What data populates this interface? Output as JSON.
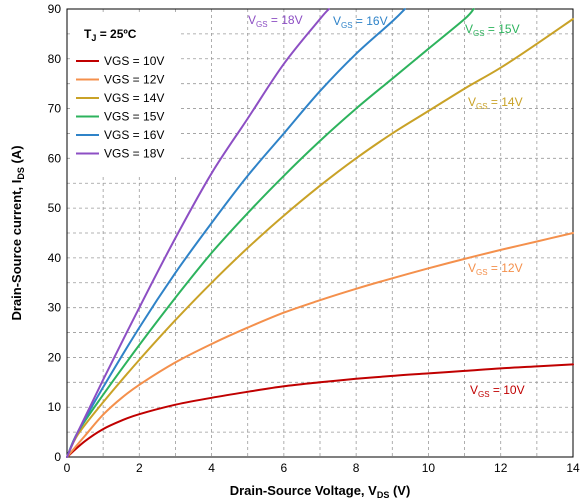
{
  "chart_data": {
    "type": "line",
    "xlabel": {
      "main": "Drain-Source Voltage, V",
      "sub": "DS",
      "tail": " (V)"
    },
    "ylabel": {
      "main": "Drain-Source current, I",
      "sub": "DS",
      "tail": " (A)"
    },
    "xlim": [
      0,
      14
    ],
    "ylim": [
      0,
      90
    ],
    "x_ticks": [
      0,
      2,
      4,
      6,
      8,
      10,
      12,
      14
    ],
    "y_ticks": [
      0,
      10,
      20,
      30,
      40,
      50,
      60,
      70,
      80,
      90
    ],
    "grid": "dashed",
    "legend_position": "top-left",
    "condition_note": {
      "main": "T",
      "sub": "J",
      "tail": " = 25ºC"
    },
    "series": [
      {
        "name": "VGS = 10V",
        "color": "#c00000",
        "annotation": {
          "main": "V",
          "sub": "GS",
          "tail": " = 10V"
        },
        "points": [
          [
            0,
            0
          ],
          [
            0.5,
            3.2
          ],
          [
            1,
            5.6
          ],
          [
            1.5,
            7.3
          ],
          [
            2,
            8.6
          ],
          [
            3,
            10.5
          ],
          [
            4,
            11.9
          ],
          [
            5,
            13.1
          ],
          [
            6,
            14.2
          ],
          [
            7,
            15
          ],
          [
            8,
            15.7
          ],
          [
            9,
            16.3
          ],
          [
            10,
            16.8
          ],
          [
            11,
            17.3
          ],
          [
            12,
            17.8
          ],
          [
            13,
            18.2
          ],
          [
            14,
            18.6
          ]
        ]
      },
      {
        "name": "VGS = 12V",
        "color": "#f4904c",
        "annotation": {
          "main": "V",
          "sub": "GS",
          "tail": " = 12V"
        },
        "points": [
          [
            0,
            0
          ],
          [
            0.5,
            4.3
          ],
          [
            1,
            8.5
          ],
          [
            1.5,
            11.8
          ],
          [
            2,
            14.5
          ],
          [
            3,
            19
          ],
          [
            4,
            22.7
          ],
          [
            5,
            26
          ],
          [
            6,
            29
          ],
          [
            7,
            31.5
          ],
          [
            8,
            33.8
          ],
          [
            9,
            35.9
          ],
          [
            10,
            37.9
          ],
          [
            11,
            39.8
          ],
          [
            12,
            41.6
          ],
          [
            13,
            43.3
          ],
          [
            14,
            45
          ]
        ]
      },
      {
        "name": "VGS = 14V",
        "color": "#c9a227",
        "annotation": {
          "main": "V",
          "sub": "GS",
          "tail": " = 14V"
        },
        "points": [
          [
            0,
            0
          ],
          [
            0.3,
            4.5
          ],
          [
            1,
            11
          ],
          [
            2,
            19.5
          ],
          [
            3,
            27.5
          ],
          [
            4,
            35
          ],
          [
            5,
            42
          ],
          [
            6,
            48.5
          ],
          [
            7,
            54.5
          ],
          [
            8,
            60
          ],
          [
            9,
            65
          ],
          [
            10,
            69.5
          ],
          [
            11,
            74
          ],
          [
            12,
            78.2
          ],
          [
            13,
            83
          ],
          [
            14,
            88
          ]
        ]
      },
      {
        "name": "VGS = 15V",
        "color": "#2db35d",
        "annotation": {
          "main": "V",
          "sub": "GS",
          "tail": " = 15V"
        },
        "points": [
          [
            0,
            0
          ],
          [
            0.3,
            5
          ],
          [
            1,
            12.5
          ],
          [
            2,
            22.5
          ],
          [
            3,
            32
          ],
          [
            4,
            41
          ],
          [
            5,
            49
          ],
          [
            6,
            56.5
          ],
          [
            7,
            63.5
          ],
          [
            8,
            70
          ],
          [
            9,
            76
          ],
          [
            10,
            82
          ],
          [
            11,
            88
          ],
          [
            11.25,
            90
          ]
        ]
      },
      {
        "name": "VGS = 16V",
        "color": "#2f83c8",
        "annotation": {
          "main": "V",
          "sub": "GS",
          "tail": " = 16V"
        },
        "points": [
          [
            0,
            0
          ],
          [
            0.3,
            5
          ],
          [
            1,
            14
          ],
          [
            2,
            26
          ],
          [
            3,
            37
          ],
          [
            4,
            47
          ],
          [
            5,
            56.5
          ],
          [
            6,
            65
          ],
          [
            7,
            73.5
          ],
          [
            8,
            81
          ],
          [
            9,
            87.5
          ],
          [
            9.35,
            90
          ]
        ]
      },
      {
        "name": "VGS = 18V",
        "color": "#8d4fc4",
        "annotation": {
          "main": "V",
          "sub": "GS",
          "tail": " = 18V"
        },
        "points": [
          [
            0,
            0
          ],
          [
            0.3,
            5
          ],
          [
            1,
            15.5
          ],
          [
            2,
            30
          ],
          [
            3,
            44
          ],
          [
            4,
            57
          ],
          [
            5,
            68
          ],
          [
            6,
            79
          ],
          [
            7,
            88
          ],
          [
            7.25,
            90
          ]
        ]
      }
    ]
  }
}
